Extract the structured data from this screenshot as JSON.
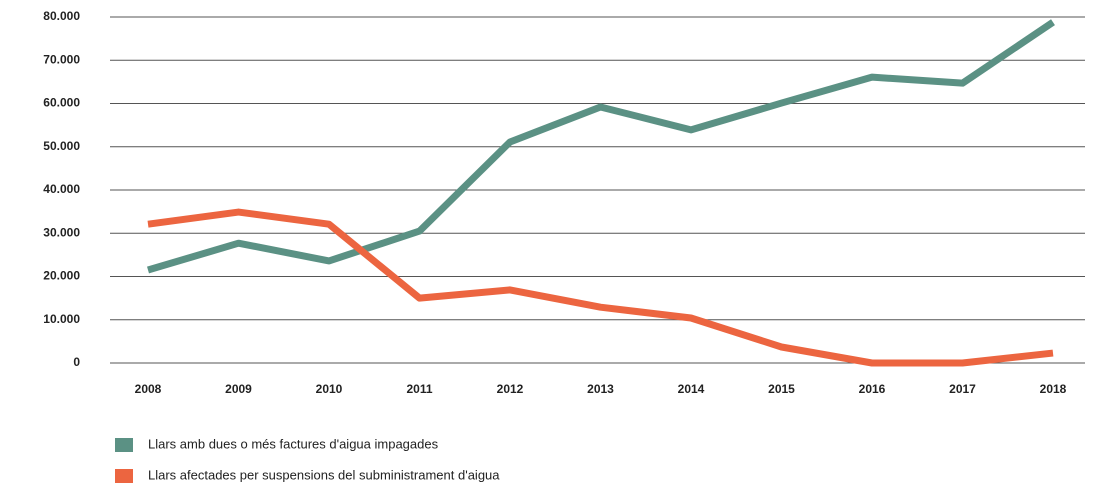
{
  "chart_data": {
    "type": "line",
    "categories": [
      "2008",
      "2009",
      "2010",
      "2011",
      "2012",
      "2013",
      "2014",
      "2015",
      "2016",
      "2017",
      "2018"
    ],
    "series": [
      {
        "name": "Llars amb dues o més factures d'aigua impagades",
        "color": "#5b9184",
        "values": [
          21500,
          27700,
          23600,
          30500,
          51100,
          59200,
          53900,
          60100,
          66100,
          64700,
          78800
        ]
      },
      {
        "name": "Llars afectades per suspensions del subministrament d'aigua",
        "color": "#ec6540",
        "values": [
          32100,
          34900,
          32100,
          15000,
          16900,
          12900,
          10400,
          3700,
          0,
          0,
          2300
        ]
      }
    ],
    "ylim": [
      0,
      80000
    ],
    "yticks": [
      0,
      {
        "value": 10000,
        "label": "10.000"
      },
      {
        "value": 20000,
        "label": "20.000"
      },
      {
        "value": 30000,
        "label": "30.000"
      },
      {
        "value": 40000,
        "label": "40.000"
      },
      {
        "value": 50000,
        "label": "50.000"
      },
      {
        "value": 60000,
        "label": "60.000"
      },
      {
        "value": 70000,
        "label": "70.000"
      },
      {
        "value": 80000,
        "label": "80.000"
      }
    ],
    "grid": true,
    "legend": "bottom-left"
  }
}
